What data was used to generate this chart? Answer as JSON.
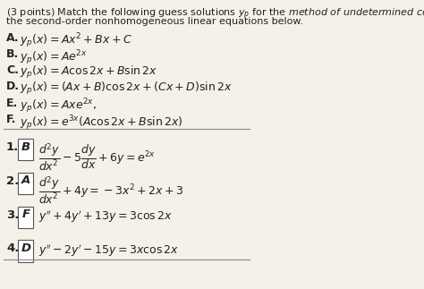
{
  "title_line1": "(3 points) Match the following guess solutions $y_p$ for the $\\it{method\\ of\\ undetermined\\ coefficients}$ with",
  "title_line2": "the second-order nonhomogeneous linear equations below.",
  "options": [
    {
      "label": "A.",
      "text": "$y_p(x) = Ax^2 + Bx + C$"
    },
    {
      "label": "B.",
      "text": "$y_p(x) = Ae^{2x}$"
    },
    {
      "label": "C.",
      "text": "$y_p(x) = A\\cos 2x + B\\sin 2x$"
    },
    {
      "label": "D.",
      "text": "$y_p(x) = (Ax + B)\\cos 2x + (Cx + D)\\sin 2x$"
    },
    {
      "label": "E.",
      "text": "$y_p(x) = Axe^{2x},$"
    },
    {
      "label": "F.",
      "text": "$y_p(x) = e^{3x}(A\\cos 2x + B\\sin 2x)$"
    }
  ],
  "problems": [
    {
      "num": "1.",
      "answer": "B",
      "eq": "$\\dfrac{d^2y}{dx^2} - 5\\dfrac{dy}{dx} + 6y = e^{2x}$"
    },
    {
      "num": "2.",
      "answer": "A",
      "eq": "$\\dfrac{d^2y}{dx^2} + 4y = -3x^2 + 2x + 3$"
    },
    {
      "num": "3.",
      "answer": "F",
      "eq": "$y'' + 4y' + 13y = 3\\cos 2x$"
    },
    {
      "num": "4.",
      "answer": "D",
      "eq": "$y'' - 2y' - 15y = 3x\\cos 2x$"
    }
  ],
  "bg_color": "#f5f0e8",
  "text_color": "#222222",
  "line_color": "#888888",
  "font_size_title": 8.0,
  "font_size_options": 9.0,
  "font_size_problems": 9.5
}
